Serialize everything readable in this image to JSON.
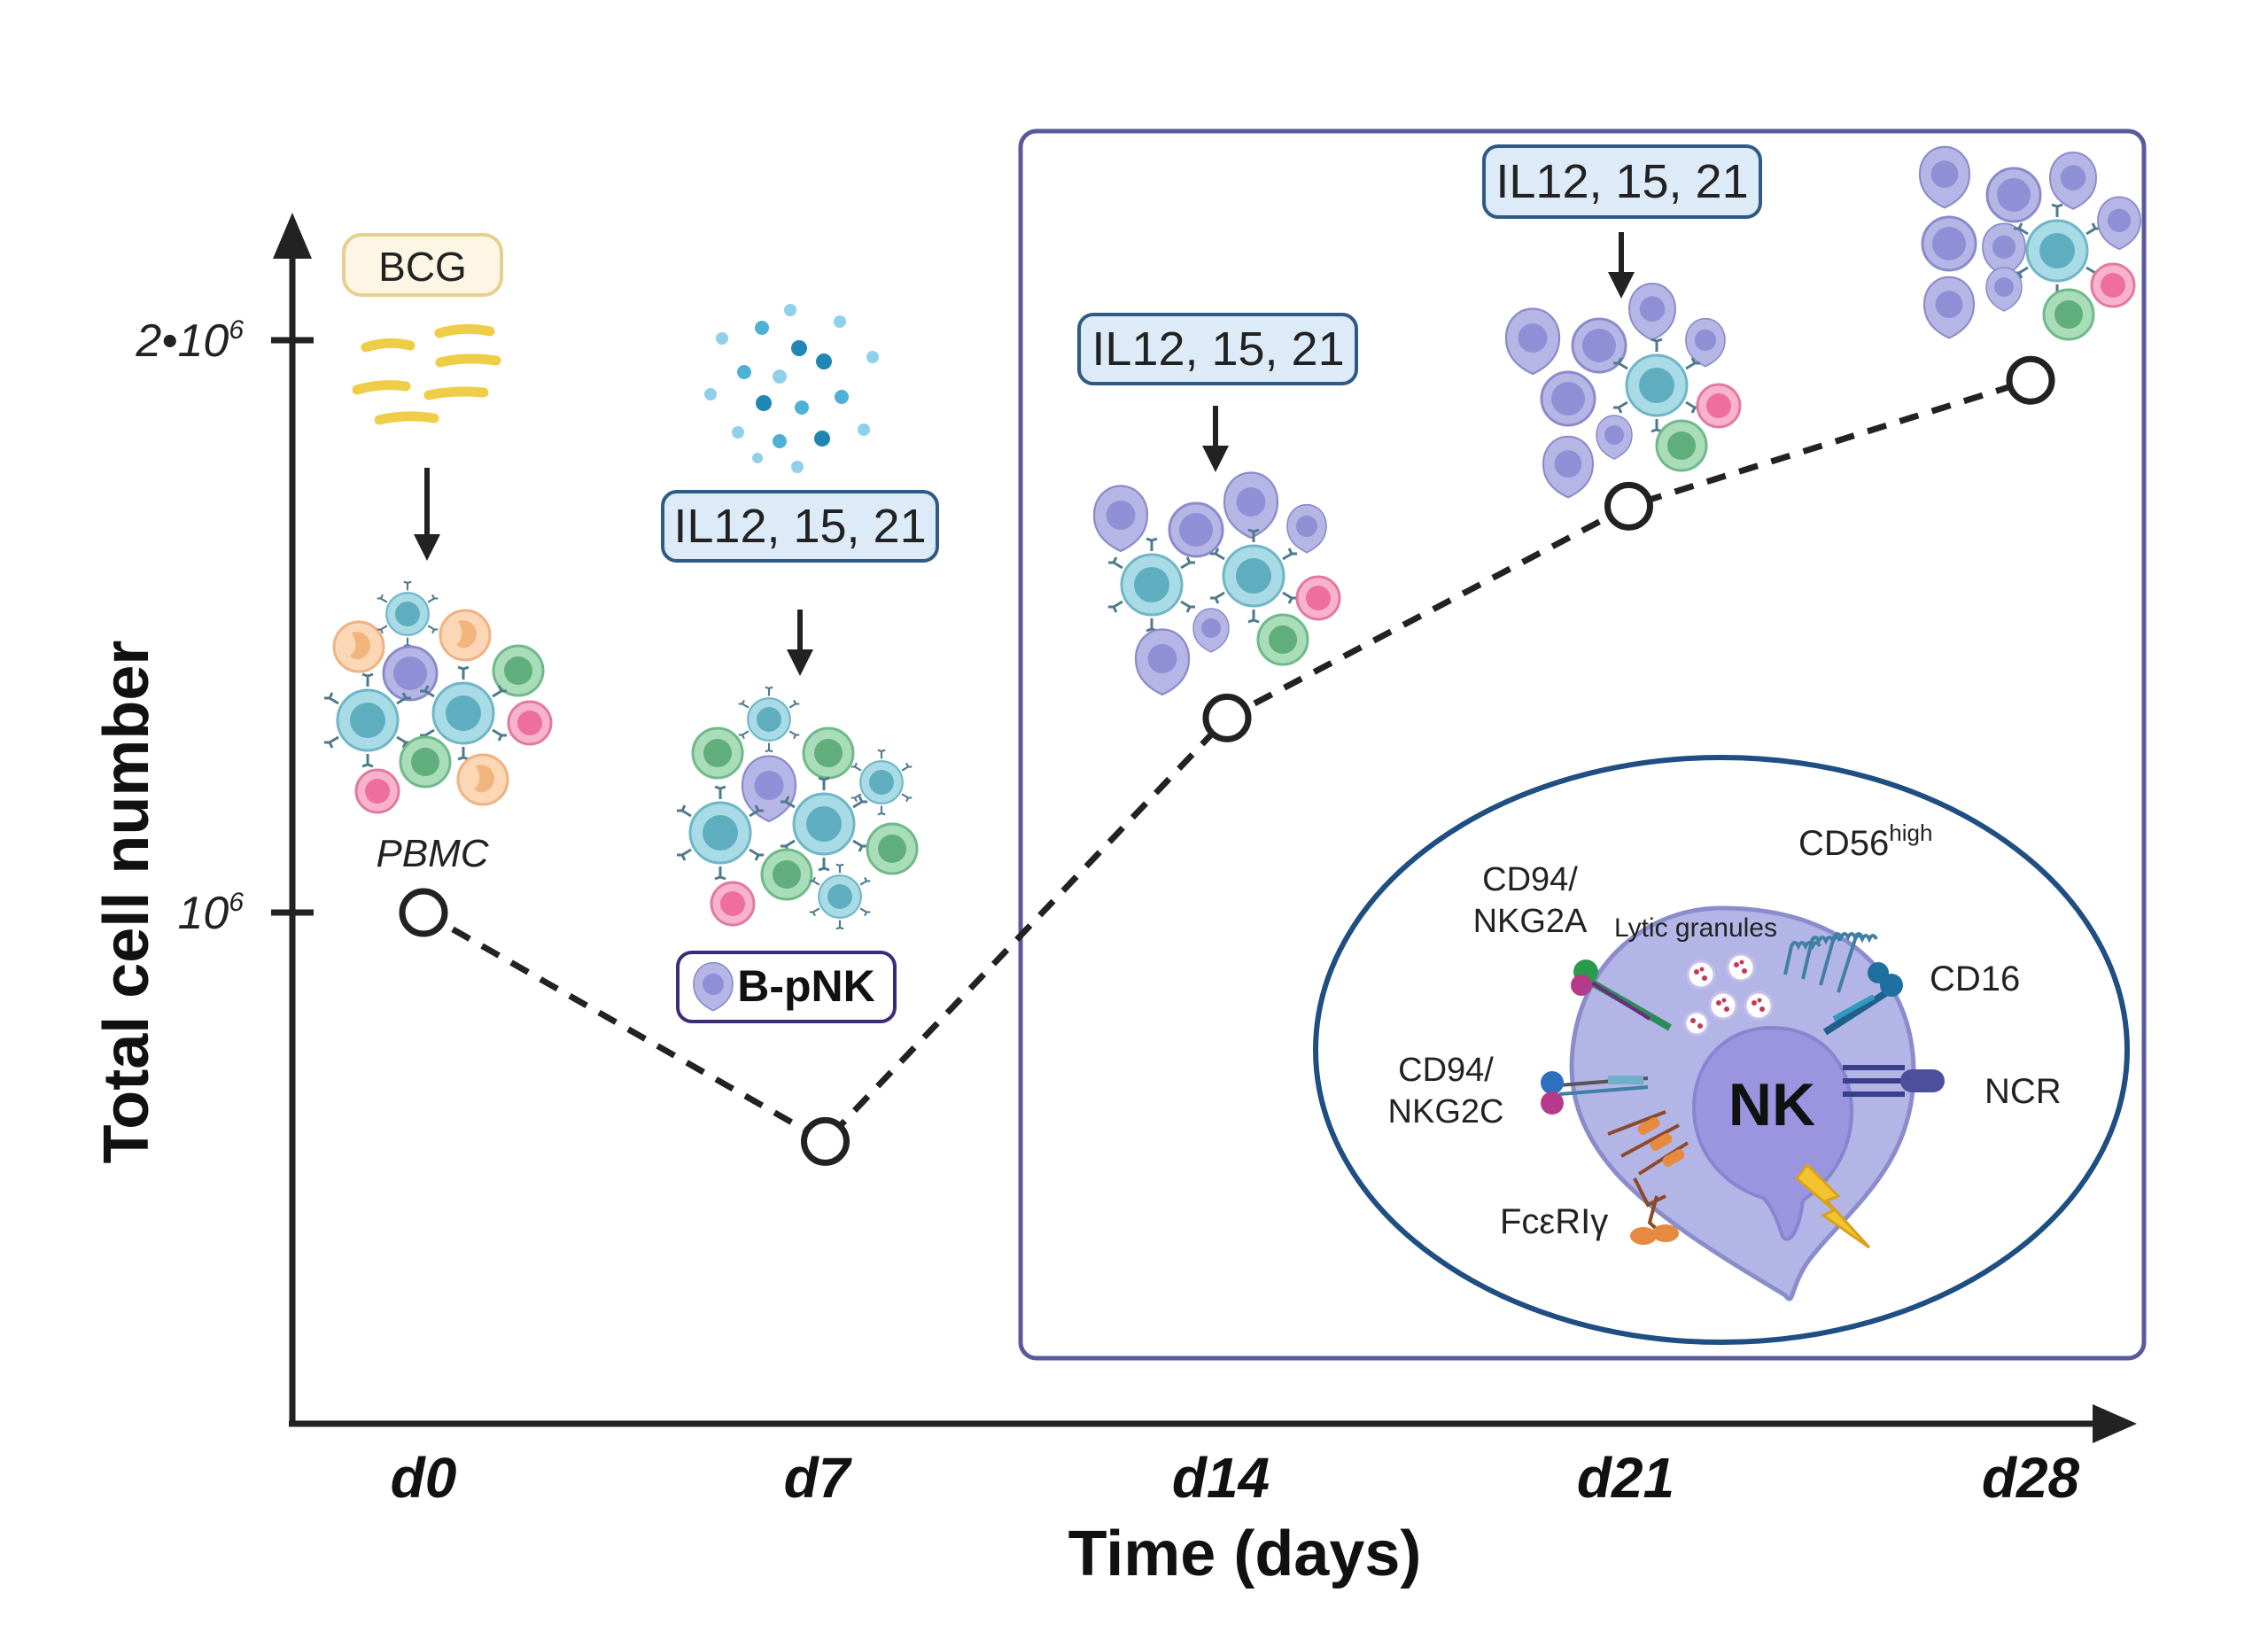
{
  "axes": {
    "y_label": "Total cell number",
    "x_label": "Time (days)",
    "y_ticks": [
      {
        "base": "2•10",
        "exp": "6",
        "value": 2000000
      },
      {
        "base": "10",
        "exp": "6",
        "value": 1000000
      }
    ],
    "x_ticks": [
      "d0",
      "d7",
      "d14",
      "d21",
      "d28"
    ]
  },
  "series": {
    "points": [
      {
        "day": 0,
        "label": "d0",
        "cells": 1000000
      },
      {
        "day": 7,
        "label": "d7",
        "cells": 600000
      },
      {
        "day": 14,
        "label": "d14",
        "cells": 1340000
      },
      {
        "day": 21,
        "label": "d21",
        "cells": 1710000
      },
      {
        "day": 28,
        "label": "d28",
        "cells": 1930000
      }
    ],
    "line_style": "dashed",
    "marker": "open-circle"
  },
  "labels": {
    "bcg": "BCG",
    "pbmc": "PBMC",
    "cytokines": "IL12, 15, 21",
    "bpnk": "B-pNK"
  },
  "nk_cell": {
    "nucleus": "NK",
    "cd56": "CD56",
    "cd56_sup": "high",
    "lytic": "Lytic granules",
    "cd94a_1": "CD94/",
    "cd94a_2": "NKG2A",
    "cd94c_1": "CD94/",
    "cd94c_2": "NKG2C",
    "cd16": "CD16",
    "ncr": "NCR",
    "fc": "FcεRIγ"
  },
  "colors": {
    "nk_purple": "#8f8fd6",
    "nucleus": "#9b95df",
    "box_border": "#5a5a9a",
    "ellipse_border": "#1f4f82",
    "cyto_box_fill": "#ddeaf8",
    "cyto_box_border": "#2e5a86",
    "bcg_fill": "#fdf6e4",
    "bcg_border": "#e6cf91",
    "bacilli": "#f0cd47",
    "t_cell": "#7cc0cf",
    "b_cell": "#6bbd8a",
    "pink": "#f08ab0",
    "mono": "#f6c49a"
  }
}
